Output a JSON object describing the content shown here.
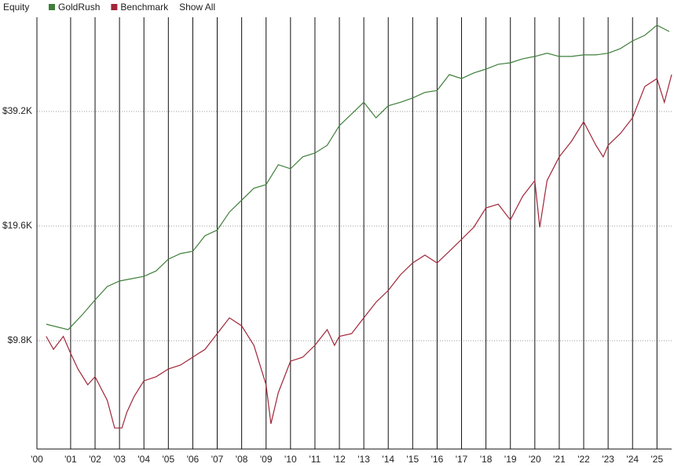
{
  "chart_data": {
    "type": "line",
    "title": "Equity",
    "log_y": true,
    "show_all": "Show All",
    "xlim": [
      1999.62,
      2025.6
    ],
    "xticks": [
      {
        "value": 1999.62,
        "label": "'00"
      },
      {
        "value": 2001,
        "label": "'01"
      },
      {
        "value": 2002,
        "label": "'02"
      },
      {
        "value": 2003,
        "label": "'03"
      },
      {
        "value": 2004,
        "label": "'04"
      },
      {
        "value": 2005,
        "label": "'05"
      },
      {
        "value": 2006,
        "label": "'06"
      },
      {
        "value": 2007,
        "label": "'07"
      },
      {
        "value": 2008,
        "label": "'08"
      },
      {
        "value": 2009,
        "label": "'09"
      },
      {
        "value": 2010,
        "label": "'10"
      },
      {
        "value": 2011,
        "label": "'11"
      },
      {
        "value": 2012,
        "label": "'12"
      },
      {
        "value": 2013,
        "label": "'13"
      },
      {
        "value": 2014,
        "label": "'14"
      },
      {
        "value": 2015,
        "label": "'15"
      },
      {
        "value": 2016,
        "label": "'16"
      },
      {
        "value": 2017,
        "label": "'17"
      },
      {
        "value": 2018,
        "label": "'18"
      },
      {
        "value": 2019,
        "label": "'19"
      },
      {
        "value": 2020,
        "label": "'20"
      },
      {
        "value": 2021,
        "label": "'21"
      },
      {
        "value": 2022,
        "label": "'22"
      },
      {
        "value": 2023,
        "label": "'23"
      },
      {
        "value": 2024,
        "label": "'24"
      },
      {
        "value": 2025,
        "label": "'25"
      }
    ],
    "ylim": [
      5090,
      69300
    ],
    "yticks": [
      {
        "value": 9800,
        "label": "$9.8K"
      },
      {
        "value": 19600,
        "label": "$19.6K"
      },
      {
        "value": 39200,
        "label": "$39.2K"
      }
    ],
    "series": [
      {
        "name": "GoldRush",
        "color": "#3f7f3a",
        "x": [
          2000.0,
          2000.9,
          2001.5,
          2002.0,
          2002.5,
          2003.0,
          2003.5,
          2004.0,
          2004.5,
          2005.0,
          2005.5,
          2006.0,
          2006.5,
          2007.0,
          2007.5,
          2008.0,
          2008.5,
          2009.0,
          2009.5,
          2010.0,
          2010.5,
          2011.0,
          2011.5,
          2012.0,
          2012.5,
          2013.0,
          2013.5,
          2014.0,
          2014.5,
          2015.0,
          2015.5,
          2016.0,
          2016.5,
          2017.0,
          2017.5,
          2018.0,
          2018.5,
          2019.0,
          2019.5,
          2020.0,
          2020.5,
          2021.0,
          2021.5,
          2022.0,
          2022.5,
          2023.0,
          2023.5,
          2024.0,
          2024.5,
          2025.0,
          2025.5
        ],
        "values": [
          10830,
          10480,
          11510,
          12540,
          13600,
          14060,
          14260,
          14460,
          14950,
          16050,
          16600,
          16830,
          18500,
          19130,
          21340,
          22920,
          24640,
          25190,
          28410,
          27720,
          29790,
          30480,
          31950,
          35970,
          38610,
          41450,
          37730,
          40570,
          41450,
          42530,
          44000,
          44490,
          49000,
          47830,
          49490,
          50670,
          52140,
          52630,
          53900,
          54690,
          55760,
          54690,
          54690,
          55200,
          55200,
          55760,
          57330,
          60070,
          62130,
          66050,
          63600
        ]
      },
      {
        "name": "Benchmark",
        "color": "#a02638",
        "x": [
          2000.0,
          2000.3,
          2000.7,
          2001.0,
          2001.3,
          2001.7,
          2002.0,
          2002.5,
          2002.8,
          2003.1,
          2003.3,
          2003.6,
          2004.0,
          2004.5,
          2005.0,
          2005.5,
          2006.0,
          2006.5,
          2007.0,
          2007.5,
          2008.0,
          2008.5,
          2009.0,
          2009.2,
          2009.5,
          2010.0,
          2010.5,
          2011.0,
          2011.5,
          2011.8,
          2012.0,
          2012.5,
          2013.0,
          2013.5,
          2014.0,
          2014.5,
          2015.0,
          2015.5,
          2016.0,
          2016.5,
          2017.0,
          2017.5,
          2018.0,
          2018.5,
          2019.0,
          2019.5,
          2020.0,
          2020.2,
          2020.5,
          2021.0,
          2021.5,
          2022.0,
          2022.5,
          2022.8,
          2023.0,
          2023.5,
          2024.0,
          2024.5,
          2025.0,
          2025.3,
          2025.6
        ],
        "values": [
          10060,
          9300,
          10060,
          9080,
          8260,
          7510,
          7880,
          6830,
          5780,
          5780,
          6360,
          7000,
          7690,
          7880,
          8260,
          8460,
          8870,
          9300,
          10230,
          11250,
          10720,
          9530,
          7510,
          5930,
          7160,
          8660,
          8870,
          9530,
          10480,
          9530,
          10060,
          10230,
          11250,
          12370,
          13280,
          14600,
          15680,
          16440,
          15680,
          16830,
          18080,
          19460,
          21870,
          22380,
          20340,
          23470,
          25820,
          19460,
          25820,
          29790,
          32730,
          36830,
          31950,
          29790,
          31950,
          34300,
          37730,
          45570,
          47830,
          41450,
          49000
        ]
      }
    ]
  }
}
